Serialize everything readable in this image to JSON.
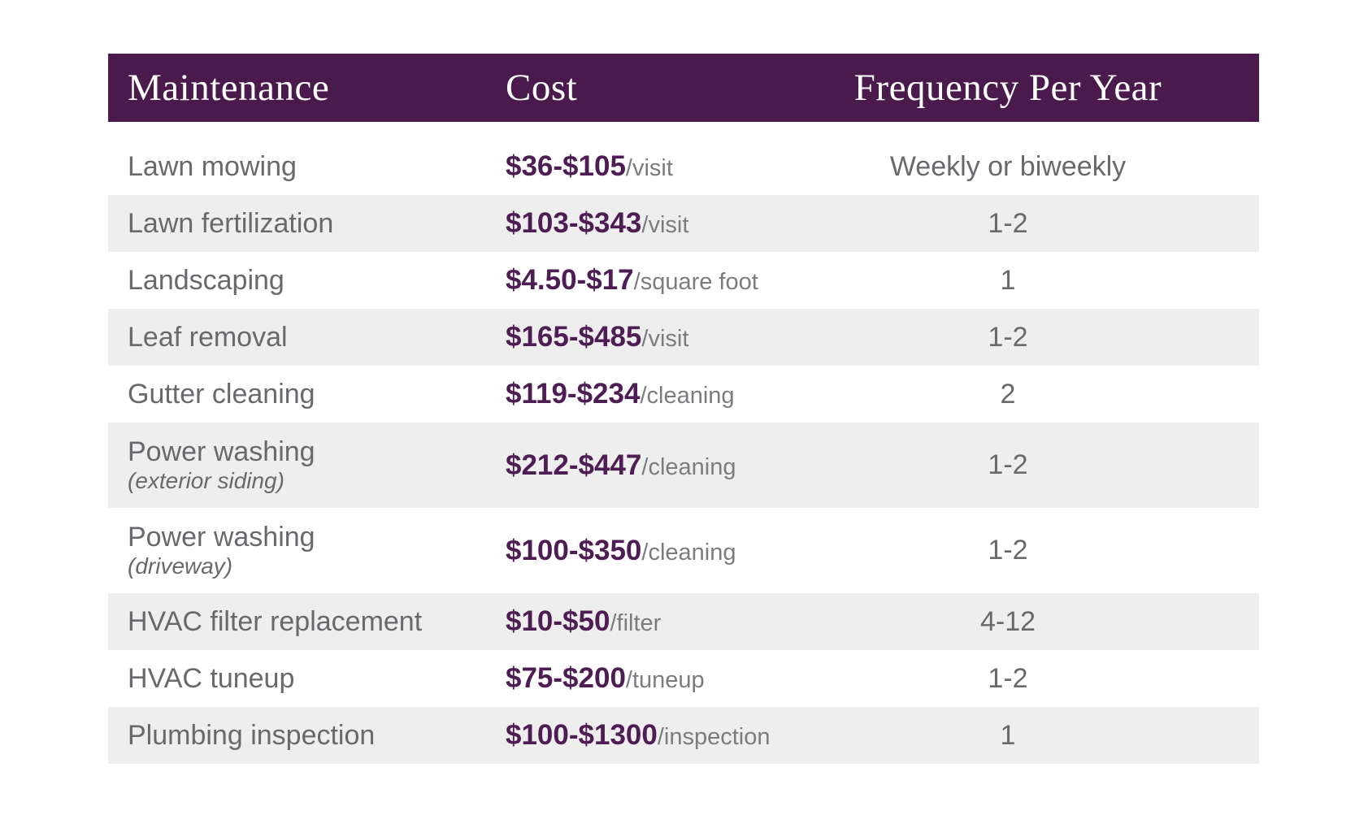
{
  "colors": {
    "header_bg": "#4a1a4d",
    "header_text": "#ffffff",
    "stripe": "#eeeeee",
    "text_gray": "#68696c",
    "unit_gray": "#7b7c7f",
    "cost_purple": "#4e1d54"
  },
  "chart_data": {
    "type": "table",
    "title": "",
    "columns": [
      "Maintenance",
      "Cost",
      "Frequency Per Year"
    ],
    "rows": [
      {
        "service": "Lawn mowing",
        "note": "",
        "cost": "$36-$105",
        "unit": "/visit",
        "frequency": "Weekly or biweekly"
      },
      {
        "service": "Lawn fertilization",
        "note": "",
        "cost": "$103-$343",
        "unit": "/visit",
        "frequency": "1-2"
      },
      {
        "service": "Landscaping",
        "note": "",
        "cost": "$4.50-$17",
        "unit": "/square foot",
        "frequency": "1"
      },
      {
        "service": "Leaf removal",
        "note": "",
        "cost": "$165-$485",
        "unit": "/visit",
        "frequency": "1-2"
      },
      {
        "service": "Gutter cleaning",
        "note": "",
        "cost": "$119-$234",
        "unit": "/cleaning",
        "frequency": "2"
      },
      {
        "service": "Power washing",
        "note": "(exterior siding)",
        "cost": "$212-$447",
        "unit": "/cleaning",
        "frequency": "1-2"
      },
      {
        "service": "Power washing",
        "note": "(driveway)",
        "cost": "$100-$350",
        "unit": "/cleaning",
        "frequency": "1-2"
      },
      {
        "service": "HVAC filter replacement",
        "note": "",
        "cost": "$10-$50",
        "unit": "/filter",
        "frequency": "4-12"
      },
      {
        "service": "HVAC tuneup",
        "note": "",
        "cost": "$75-$200",
        "unit": "/tuneup",
        "frequency": "1-2"
      },
      {
        "service": "Plumbing inspection",
        "note": "",
        "cost": "$100-$1300",
        "unit": "/inspection",
        "frequency": "1"
      }
    ]
  }
}
